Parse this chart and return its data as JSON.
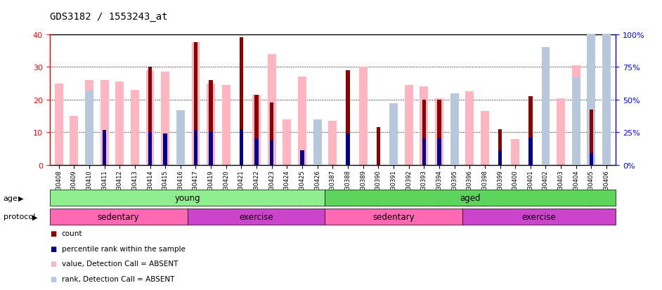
{
  "title": "GDS3182 / 1553243_at",
  "samples": [
    "GSM230408",
    "GSM230409",
    "GSM230410",
    "GSM230411",
    "GSM230412",
    "GSM230413",
    "GSM230414",
    "GSM230415",
    "GSM230416",
    "GSM230417",
    "GSM230419",
    "GSM230420",
    "GSM230421",
    "GSM230422",
    "GSM230423",
    "GSM230424",
    "GSM230425",
    "GSM230426",
    "GSM230387",
    "GSM230388",
    "GSM230389",
    "GSM230390",
    "GSM230391",
    "GSM230392",
    "GSM230393",
    "GSM230394",
    "GSM230395",
    "GSM230396",
    "GSM230398",
    "GSM230399",
    "GSM230400",
    "GSM230401",
    "GSM230402",
    "GSM230403",
    "GSM230404",
    "GSM230405",
    "GSM230406"
  ],
  "count_values": [
    0,
    0,
    0,
    0,
    0,
    0,
    30,
    0,
    0,
    37.5,
    26,
    0,
    39,
    21.5,
    19,
    0,
    0,
    0,
    0,
    29,
    0,
    11.5,
    0,
    0,
    20,
    20,
    0,
    0,
    0,
    11,
    0,
    21,
    0,
    0,
    0,
    17,
    0
  ],
  "percentile_left": [
    0,
    0,
    0,
    27,
    0,
    0,
    25,
    24,
    0,
    27,
    26,
    0,
    27.5,
    20.5,
    19,
    0,
    11,
    0,
    0,
    24,
    0,
    0,
    0,
    0,
    20.5,
    20.5,
    0,
    0,
    0,
    11,
    0,
    21,
    0,
    0,
    0,
    9,
    0
  ],
  "value_absent": [
    25,
    15,
    26,
    26,
    25.5,
    23,
    29,
    28.5,
    16.5,
    37.5,
    25,
    24.5,
    0,
    21.5,
    34,
    14,
    27,
    13.5,
    13.5,
    0,
    30,
    0,
    18.5,
    24.5,
    24,
    20.5,
    20,
    22.5,
    16.5,
    0,
    8,
    0,
    16,
    20.5,
    30.5,
    15,
    30
  ],
  "rank_absent_pct": [
    0,
    0,
    57,
    0,
    0,
    0,
    0,
    0,
    42,
    0,
    0,
    0,
    0,
    0,
    0,
    0,
    0,
    35,
    0,
    0,
    0,
    0,
    47,
    0,
    0,
    0,
    55,
    0,
    0,
    0,
    0,
    0,
    90,
    0,
    67,
    100,
    100
  ],
  "ylim_left": [
    0,
    40
  ],
  "ylim_right": [
    0,
    100
  ],
  "yticks_left": [
    0,
    10,
    20,
    30,
    40
  ],
  "yticks_right": [
    0,
    25,
    50,
    75,
    100
  ],
  "color_count": "#8B0000",
  "color_percentile": "#00008B",
  "color_value_absent": "#FFB6C1",
  "color_rank_absent": "#B8C8DC",
  "bar_width": 0.55,
  "thin_bar_width": 0.25,
  "age_groups": [
    {
      "label": "young",
      "start": 0,
      "end": 18,
      "color": "#90EE90"
    },
    {
      "label": "aged",
      "start": 18,
      "end": 37,
      "color": "#5DD55D"
    }
  ],
  "protocol_groups": [
    {
      "label": "sedentary",
      "start": 0,
      "end": 9,
      "color": "#FF69B4"
    },
    {
      "label": "exercise",
      "start": 9,
      "end": 18,
      "color": "#CC44CC"
    },
    {
      "label": "sedentary",
      "start": 18,
      "end": 27,
      "color": "#FF69B4"
    },
    {
      "label": "exercise",
      "start": 27,
      "end": 37,
      "color": "#CC44CC"
    }
  ],
  "legend_items": [
    {
      "label": "count",
      "color": "#8B0000"
    },
    {
      "label": "percentile rank within the sample",
      "color": "#00008B"
    },
    {
      "label": "value, Detection Call = ABSENT",
      "color": "#FFB6C1"
    },
    {
      "label": "rank, Detection Call = ABSENT",
      "color": "#B8C8DC"
    }
  ]
}
